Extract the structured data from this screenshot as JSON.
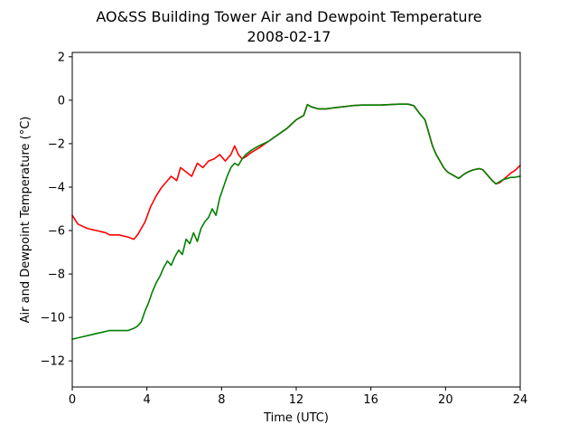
{
  "chart_data": {
    "type": "line",
    "title": "AO&SS Building Tower Air and Dewpoint Temperature",
    "subtitle": "2008-02-17",
    "xlabel": "Time (UTC)",
    "ylabel": "Air and Dewpoint Temperature (°C)",
    "xlim": [
      0,
      24
    ],
    "ylim": [
      -13.2,
      2.2
    ],
    "x_ticks": [
      0,
      4,
      8,
      12,
      16,
      20,
      24
    ],
    "y_ticks": [
      -12,
      -10,
      -8,
      -6,
      -4,
      -2,
      0,
      2
    ],
    "grid": false,
    "series": [
      {
        "color": "#ff0000",
        "x": [
          0,
          0.3,
          0.8,
          1.3,
          1.8,
          2.0,
          2.5,
          3.0,
          3.3,
          3.5,
          3.7,
          3.9,
          4.2,
          4.5,
          4.8,
          5.1,
          5.3,
          5.6,
          5.8,
          6.1,
          6.4,
          6.7,
          7.0,
          7.3,
          7.6,
          7.9,
          8.2,
          8.5,
          8.7,
          8.9,
          9.1,
          9.3,
          9.6,
          10.0,
          10.5,
          11.0,
          11.5,
          12.0,
          12.4,
          12.6,
          12.8,
          13.2,
          13.6,
          14.0,
          14.5,
          15.0,
          15.5,
          16.0,
          16.5,
          17.0,
          17.5,
          18.0,
          18.3,
          18.6,
          18.9,
          19.1,
          19.3,
          19.5,
          19.7,
          19.9,
          20.1,
          20.3,
          20.5,
          20.7,
          21.0,
          21.2,
          21.5,
          21.8,
          22.0,
          22.3,
          22.5,
          22.7,
          22.9,
          23.1,
          23.3,
          23.5,
          23.7,
          24.0
        ],
        "y": [
          -5.3,
          -5.7,
          -5.9,
          -6.0,
          -6.1,
          -6.2,
          -6.2,
          -6.3,
          -6.4,
          -6.2,
          -5.9,
          -5.6,
          -4.9,
          -4.4,
          -4.0,
          -3.7,
          -3.5,
          -3.7,
          -3.1,
          -3.3,
          -3.5,
          -2.9,
          -3.1,
          -2.8,
          -2.7,
          -2.5,
          -2.8,
          -2.5,
          -2.1,
          -2.5,
          -2.7,
          -2.6,
          -2.4,
          -2.2,
          -1.9,
          -1.6,
          -1.3,
          -0.9,
          -0.7,
          -0.2,
          -0.3,
          -0.4,
          -0.4,
          -0.35,
          -0.3,
          -0.25,
          -0.22,
          -0.22,
          -0.22,
          -0.2,
          -0.18,
          -0.18,
          -0.25,
          -0.6,
          -0.9,
          -1.5,
          -2.1,
          -2.5,
          -2.8,
          -3.1,
          -3.3,
          -3.4,
          -3.5,
          -3.6,
          -3.4,
          -3.3,
          -3.2,
          -3.15,
          -3.2,
          -3.5,
          -3.7,
          -3.85,
          -3.8,
          -3.65,
          -3.5,
          -3.35,
          -3.25,
          -3.0
        ]
      },
      {
        "color": "#008000",
        "x": [
          0,
          0.5,
          1.0,
          1.5,
          2.0,
          2.5,
          3.0,
          3.3,
          3.5,
          3.7,
          3.9,
          4.1,
          4.3,
          4.5,
          4.7,
          4.9,
          5.1,
          5.3,
          5.5,
          5.7,
          5.9,
          6.1,
          6.3,
          6.5,
          6.7,
          6.9,
          7.1,
          7.3,
          7.5,
          7.7,
          7.9,
          8.1,
          8.3,
          8.5,
          8.7,
          8.9,
          9.1,
          9.3,
          9.6,
          10.0,
          10.5,
          11.0,
          11.5,
          12.0,
          12.4,
          12.6,
          12.8,
          13.2,
          13.6,
          14.0,
          14.5,
          15.0,
          15.5,
          16.0,
          16.5,
          17.0,
          17.5,
          18.0,
          18.3,
          18.6,
          18.9,
          19.1,
          19.3,
          19.5,
          19.7,
          19.9,
          20.1,
          20.3,
          20.5,
          20.7,
          21.0,
          21.2,
          21.5,
          21.8,
          22.0,
          22.3,
          22.5,
          22.7,
          22.9,
          23.1,
          23.3,
          23.5,
          23.7,
          24.0
        ],
        "y": [
          -11.0,
          -10.9,
          -10.8,
          -10.7,
          -10.6,
          -10.6,
          -10.6,
          -10.5,
          -10.4,
          -10.2,
          -9.7,
          -9.3,
          -8.8,
          -8.4,
          -8.1,
          -7.7,
          -7.4,
          -7.6,
          -7.2,
          -6.9,
          -7.1,
          -6.4,
          -6.6,
          -6.1,
          -6.5,
          -5.9,
          -5.6,
          -5.4,
          -5.0,
          -5.3,
          -4.5,
          -4.0,
          -3.5,
          -3.1,
          -2.9,
          -3.0,
          -2.7,
          -2.5,
          -2.3,
          -2.1,
          -1.9,
          -1.6,
          -1.3,
          -0.9,
          -0.7,
          -0.2,
          -0.3,
          -0.4,
          -0.4,
          -0.35,
          -0.3,
          -0.25,
          -0.22,
          -0.22,
          -0.22,
          -0.2,
          -0.18,
          -0.18,
          -0.25,
          -0.6,
          -0.9,
          -1.5,
          -2.1,
          -2.5,
          -2.8,
          -3.1,
          -3.3,
          -3.4,
          -3.5,
          -3.6,
          -3.4,
          -3.3,
          -3.2,
          -3.15,
          -3.2,
          -3.5,
          -3.7,
          -3.85,
          -3.75,
          -3.65,
          -3.6,
          -3.55,
          -3.55,
          -3.5
        ]
      }
    ]
  }
}
